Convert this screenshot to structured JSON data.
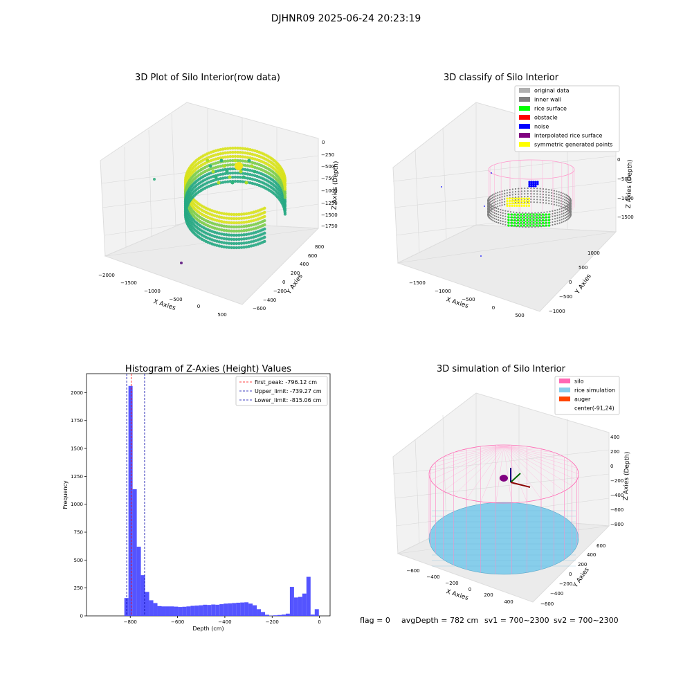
{
  "suptitle": "DJHNR09 2025-06-24 20:23:19",
  "footer": {
    "flag": "flag = 0",
    "avg": "avgDepth = 782 cm",
    "sv1": "sv1 = 700~2300",
    "sv2": "sv2 = 700~2300"
  },
  "panel1": {
    "title": "3D Plot of Silo Interior(row data)",
    "xlabel": "X Axies",
    "ylabel": "Y Axies",
    "zlabel": "Z Axies (Depth)",
    "xticks": [
      "−2000",
      "−1500",
      "−1000",
      "−500",
      "0",
      "500"
    ],
    "yticks": [
      "−600",
      "−400",
      "−200",
      "0",
      "200",
      "400",
      "600",
      "800"
    ],
    "zticks": [
      "0",
      "−250",
      "−500",
      "−750",
      "−1000",
      "−1250",
      "−1500",
      "−1750"
    ]
  },
  "panel2": {
    "title": "3D classify of Silo Interior",
    "xlabel": "X Axies",
    "ylabel": "Y Axies",
    "zlabel": "Z Axies (Depth)",
    "xticks": [
      "−1500",
      "−1000",
      "−500",
      "0",
      "500"
    ],
    "yticks": [
      "−1000",
      "−500",
      "0",
      "500",
      "1000"
    ],
    "zticks": [
      "0",
      "−500",
      "−1000",
      "−1500"
    ],
    "legend": [
      {
        "label": "original data",
        "color": "#b0b0b0"
      },
      {
        "label": "inner wall",
        "color": "#808080"
      },
      {
        "label": "rice surface",
        "color": "#00ff00"
      },
      {
        "label": "obstacle",
        "color": "#ff0000"
      },
      {
        "label": "noise",
        "color": "#0000ff"
      },
      {
        "label": "interpolated rice surface",
        "color": "#800080"
      },
      {
        "label": "symmetric generated points",
        "color": "#ffff00"
      }
    ]
  },
  "panel4": {
    "title": "3D simulation of Silo Interior",
    "xlabel": "X Axies",
    "ylabel": "Y Axies",
    "zlabel": "Z Axies (Depth)",
    "xticks": [
      "−600",
      "−400",
      "−200",
      "0",
      "200",
      "400"
    ],
    "yticks": [
      "−600",
      "−400",
      "−200",
      "0",
      "200",
      "400",
      "600"
    ],
    "zticks": [
      "400",
      "200",
      "0",
      "−200",
      "−400",
      "−600",
      "−800"
    ],
    "legend": [
      {
        "label": "silo",
        "color": "#ff69b4"
      },
      {
        "label": "rice simulation",
        "color": "#87ceeb"
      },
      {
        "label": "auger",
        "color": "#ff4500"
      },
      {
        "label": "center(-91,24)",
        "color": ""
      }
    ]
  },
  "chart_data": {
    "type": "bar",
    "title": "Histogram of Z-Axies (Height) Values",
    "xlabel": "Depth (cm)",
    "ylabel": "Frequency",
    "xlim": [
      -985,
      45
    ],
    "ylim": [
      0,
      2170
    ],
    "xticks": [
      -800,
      -600,
      -400,
      -200,
      0
    ],
    "yticks": [
      0,
      250,
      500,
      750,
      1000,
      1250,
      1500,
      1750,
      2000
    ],
    "bin_width": 17.5,
    "bins": [
      {
        "x": -825,
        "value": 160
      },
      {
        "x": -807.5,
        "value": 2060
      },
      {
        "x": -790,
        "value": 1135
      },
      {
        "x": -772.5,
        "value": 620
      },
      {
        "x": -755,
        "value": 365
      },
      {
        "x": -737.5,
        "value": 215
      },
      {
        "x": -720,
        "value": 140
      },
      {
        "x": -702.5,
        "value": 115
      },
      {
        "x": -685,
        "value": 88
      },
      {
        "x": -667.5,
        "value": 85
      },
      {
        "x": -650,
        "value": 85
      },
      {
        "x": -632.5,
        "value": 85
      },
      {
        "x": -615,
        "value": 83
      },
      {
        "x": -597.5,
        "value": 80
      },
      {
        "x": -580,
        "value": 82
      },
      {
        "x": -562.5,
        "value": 85
      },
      {
        "x": -545,
        "value": 90
      },
      {
        "x": -527.5,
        "value": 92
      },
      {
        "x": -510,
        "value": 95
      },
      {
        "x": -492.5,
        "value": 100
      },
      {
        "x": -475,
        "value": 98
      },
      {
        "x": -457.5,
        "value": 102
      },
      {
        "x": -440,
        "value": 100
      },
      {
        "x": -422.5,
        "value": 105
      },
      {
        "x": -405,
        "value": 110
      },
      {
        "x": -387.5,
        "value": 112
      },
      {
        "x": -370,
        "value": 115
      },
      {
        "x": -352.5,
        "value": 118
      },
      {
        "x": -335,
        "value": 120
      },
      {
        "x": -317.5,
        "value": 122
      },
      {
        "x": -300,
        "value": 110
      },
      {
        "x": -282.5,
        "value": 95
      },
      {
        "x": -265,
        "value": 60
      },
      {
        "x": -247.5,
        "value": 35
      },
      {
        "x": -230,
        "value": 10
      },
      {
        "x": -212.5,
        "value": 2
      },
      {
        "x": -195,
        "value": 5
      },
      {
        "x": -177.5,
        "value": 8
      },
      {
        "x": -160,
        "value": 12
      },
      {
        "x": -142.5,
        "value": 20
      },
      {
        "x": -125,
        "value": 260
      },
      {
        "x": -107.5,
        "value": 165
      },
      {
        "x": -90,
        "value": 170
      },
      {
        "x": -72.5,
        "value": 200
      },
      {
        "x": -55,
        "value": 350
      },
      {
        "x": -37.5,
        "value": 12
      },
      {
        "x": -20,
        "value": 60
      }
    ],
    "lines": [
      {
        "label": "first_peak: -796.12 cm",
        "x": -796.12,
        "color": "#ff0000"
      },
      {
        "label": "Upper_limit: -739.27 cm",
        "x": -739.27,
        "color": "#0000aa"
      },
      {
        "label": "Lower_limit: -815.06 cm",
        "x": -815.06,
        "color": "#0000aa"
      }
    ],
    "bar_color": "#4b4bff"
  }
}
